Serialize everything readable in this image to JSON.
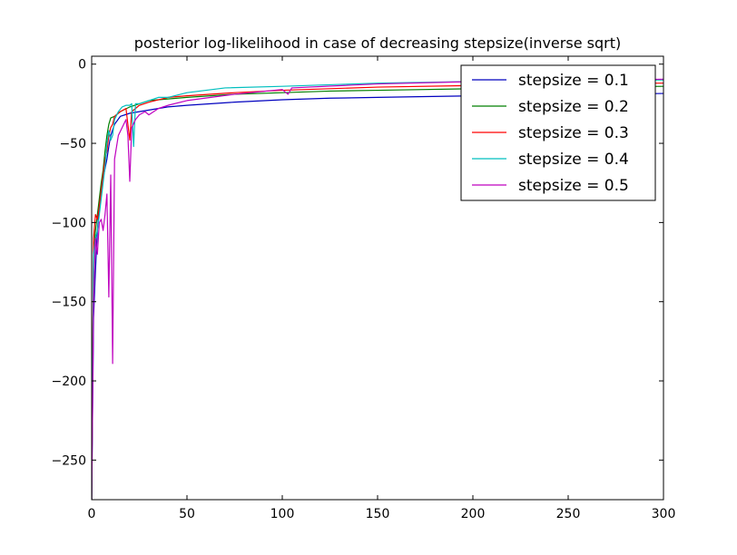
{
  "chart_data": {
    "type": "line",
    "title": "posterior log-likelihood in case of decreasing stepsize(inverse sqrt)",
    "xlabel": "",
    "ylabel": "",
    "xlim": [
      0,
      300
    ],
    "ylim": [
      -275,
      5
    ],
    "xticks": [
      0,
      50,
      100,
      150,
      200,
      250,
      300
    ],
    "yticks": [
      0,
      -50,
      -100,
      -150,
      -200,
      -250
    ],
    "grid": false,
    "legend_position": "top-right",
    "series": [
      {
        "name": "stepsize = 0.1",
        "color": "#0000bf",
        "points": [
          [
            0,
            -275
          ],
          [
            1,
            -160
          ],
          [
            2,
            -130
          ],
          [
            3,
            -105
          ],
          [
            4,
            -90
          ],
          [
            5,
            -80
          ],
          [
            6,
            -72
          ],
          [
            7,
            -66
          ],
          [
            8,
            -60
          ],
          [
            9,
            -52
          ],
          [
            10,
            -45
          ],
          [
            12,
            -38
          ],
          [
            15,
            -33
          ],
          [
            20,
            -31
          ],
          [
            30,
            -29
          ],
          [
            40,
            -27
          ],
          [
            50,
            -26
          ],
          [
            75,
            -24
          ],
          [
            100,
            -22.5
          ],
          [
            125,
            -21.5
          ],
          [
            150,
            -21
          ],
          [
            175,
            -20.5
          ],
          [
            200,
            -20
          ],
          [
            250,
            -19.3
          ],
          [
            300,
            -18.5
          ]
        ]
      },
      {
        "name": "stepsize = 0.2",
        "color": "#007f00",
        "points": [
          [
            0,
            -275
          ],
          [
            1,
            -120
          ],
          [
            2,
            -105
          ],
          [
            3,
            -95
          ],
          [
            4,
            -85
          ],
          [
            5,
            -75
          ],
          [
            6,
            -67
          ],
          [
            7,
            -55
          ],
          [
            8,
            -45
          ],
          [
            9,
            -38
          ],
          [
            10,
            -34
          ],
          [
            12,
            -33
          ],
          [
            15,
            -30
          ],
          [
            20,
            -27
          ],
          [
            25,
            -25
          ],
          [
            30,
            -23
          ],
          [
            40,
            -22
          ],
          [
            50,
            -21
          ],
          [
            75,
            -19
          ],
          [
            100,
            -18
          ],
          [
            125,
            -17
          ],
          [
            150,
            -16.5
          ],
          [
            200,
            -15.5
          ],
          [
            250,
            -14.5
          ],
          [
            300,
            -14
          ]
        ]
      },
      {
        "name": "stepsize = 0.3",
        "color": "#ff0000",
        "points": [
          [
            0,
            -275
          ],
          [
            1,
            -110
          ],
          [
            2,
            -95
          ],
          [
            3,
            -98
          ],
          [
            4,
            -90
          ],
          [
            5,
            -80
          ],
          [
            6,
            -70
          ],
          [
            7,
            -60
          ],
          [
            8,
            -55
          ],
          [
            9,
            -45
          ],
          [
            10,
            -40
          ],
          [
            11,
            -38
          ],
          [
            12,
            -33
          ],
          [
            15,
            -30
          ],
          [
            18,
            -28
          ],
          [
            20,
            -48
          ],
          [
            21,
            -30
          ],
          [
            25,
            -26
          ],
          [
            30,
            -24
          ],
          [
            40,
            -21
          ],
          [
            50,
            -20
          ],
          [
            75,
            -18
          ],
          [
            100,
            -16.5
          ],
          [
            125,
            -15.5
          ],
          [
            150,
            -14.5
          ],
          [
            200,
            -13.5
          ],
          [
            250,
            -12.5
          ],
          [
            300,
            -12
          ]
        ]
      },
      {
        "name": "stepsize = 0.4",
        "color": "#00bfbf",
        "points": [
          [
            0,
            -275
          ],
          [
            1,
            -120
          ],
          [
            2,
            -110
          ],
          [
            3,
            -105
          ],
          [
            4,
            -95
          ],
          [
            5,
            -85
          ],
          [
            6,
            -75
          ],
          [
            7,
            -65
          ],
          [
            8,
            -50
          ],
          [
            9,
            -42
          ],
          [
            10,
            -48
          ],
          [
            11,
            -45
          ],
          [
            12,
            -35
          ],
          [
            14,
            -30
          ],
          [
            16,
            -27
          ],
          [
            18,
            -26
          ],
          [
            20,
            -26
          ],
          [
            21,
            -25
          ],
          [
            22,
            -52
          ],
          [
            23,
            -25
          ],
          [
            25,
            -25
          ],
          [
            30,
            -23
          ],
          [
            35,
            -21
          ],
          [
            40,
            -21
          ],
          [
            50,
            -18
          ],
          [
            70,
            -15
          ],
          [
            100,
            -14
          ],
          [
            150,
            -12
          ],
          [
            200,
            -11
          ],
          [
            250,
            -10.5
          ],
          [
            300,
            -10
          ]
        ]
      },
      {
        "name": "stepsize = 0.5",
        "color": "#bf00bf",
        "points": [
          [
            0,
            -275
          ],
          [
            1,
            -150
          ],
          [
            2,
            -110
          ],
          [
            3,
            -120
          ],
          [
            4,
            -100
          ],
          [
            5,
            -98
          ],
          [
            6,
            -105
          ],
          [
            7,
            -95
          ],
          [
            8,
            -82
          ],
          [
            9,
            -147
          ],
          [
            10,
            -70
          ],
          [
            11,
            -189
          ],
          [
            12,
            -60
          ],
          [
            14,
            -45
          ],
          [
            16,
            -40
          ],
          [
            18,
            -35
          ],
          [
            19,
            -45
          ],
          [
            20,
            -74
          ],
          [
            21,
            -40
          ],
          [
            23,
            -35
          ],
          [
            25,
            -32
          ],
          [
            28,
            -30
          ],
          [
            30,
            -32
          ],
          [
            35,
            -28
          ],
          [
            40,
            -26
          ],
          [
            50,
            -23
          ],
          [
            75,
            -19
          ],
          [
            100,
            -16
          ],
          [
            103,
            -19
          ],
          [
            105,
            -15
          ],
          [
            150,
            -12.5
          ],
          [
            200,
            -11
          ],
          [
            250,
            -10.5
          ],
          [
            300,
            -9.5
          ]
        ]
      }
    ]
  }
}
